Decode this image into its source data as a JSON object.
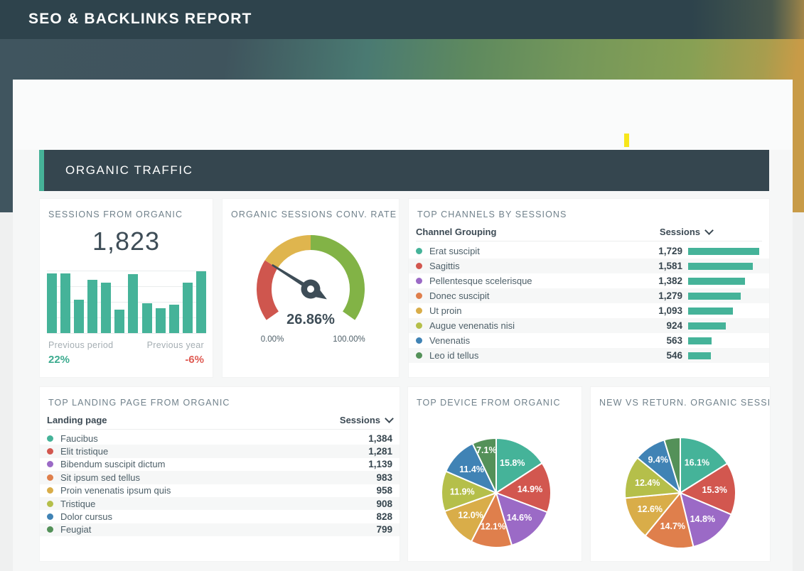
{
  "page_title": "SEO & BACKLINKS REPORT",
  "section_title": "ORGANIC TRAFFIC",
  "colors": {
    "accent_teal": "#46b298",
    "header_band": "#2e434c",
    "section_bar": "#35464f",
    "positive": "#3cab8f",
    "negative": "#df5a52",
    "highlight_marker": "#f7e61b",
    "series_palette": [
      "#45b399",
      "#d2574f",
      "#9b6ac6",
      "#df7f4c",
      "#d9ad49",
      "#b5bf4a",
      "#4083b5",
      "#549159"
    ]
  },
  "chart_data": [
    {
      "id": "sessions_sparkline",
      "type": "bar",
      "title": "SESSIONS FROM ORGANIC",
      "big_number": "1,823",
      "values_relative_percent": [
        95,
        96,
        53,
        85,
        81,
        38,
        94,
        48,
        40,
        45,
        81,
        99
      ],
      "bar_color": "#45b399",
      "grid": true,
      "footer": {
        "prev_period_label": "Previous period",
        "prev_period_value": "22%",
        "prev_year_label": "Previous year",
        "prev_year_value": "-6%"
      }
    },
    {
      "id": "conv_rate_gauge",
      "type": "gauge",
      "title": "ORGANIC SESSIONS CONV. RATE",
      "value": 26.86,
      "value_label": "26.86%",
      "min": 0,
      "max": 100,
      "min_label": "0.00%",
      "max_label": "100.00%",
      "sweep_deg": 250,
      "segments": [
        {
          "to": 26.86,
          "color": "#cf564e"
        },
        {
          "to": 50,
          "color": "#dfb54e"
        },
        {
          "to": 100,
          "color": "#82b346"
        }
      ],
      "needle_color": "#3e4d57"
    },
    {
      "id": "top_channels",
      "type": "table-bar",
      "title": "TOP CHANNELS BY SESSIONS",
      "col1": "Channel Grouping",
      "col2": "Sessions",
      "bar_color": "#45b399",
      "max": 1729,
      "rows": [
        {
          "label": "Erat suscipit",
          "value": "1,729",
          "num": 1729,
          "color": "#45b399"
        },
        {
          "label": "Sagittis",
          "value": "1,581",
          "num": 1581,
          "color": "#d2574f"
        },
        {
          "label": "Pellentesque scelerisque",
          "value": "1,382",
          "num": 1382,
          "color": "#9b6ac6"
        },
        {
          "label": "Donec suscipit",
          "value": "1,279",
          "num": 1279,
          "color": "#df7f4c"
        },
        {
          "label": "Ut proin",
          "value": "1,093",
          "num": 1093,
          "color": "#d9ad49"
        },
        {
          "label": "Augue venenatis nisi",
          "value": "924",
          "num": 924,
          "color": "#b5bf4a"
        },
        {
          "label": "Venenatis",
          "value": "563",
          "num": 563,
          "color": "#4083b5"
        },
        {
          "label": "Leo id tellus",
          "value": "546",
          "num": 546,
          "color": "#549159"
        }
      ]
    },
    {
      "id": "top_landing",
      "type": "table",
      "title": "TOP LANDING PAGE FROM ORGANIC",
      "col1": "Landing page",
      "col2": "Sessions",
      "rows": [
        {
          "label": "Faucibus",
          "value": "1,384",
          "color": "#45b399"
        },
        {
          "label": "Elit tristique",
          "value": "1,281",
          "color": "#d2574f"
        },
        {
          "label": "Bibendum suscipit dictum",
          "value": "1,139",
          "color": "#9b6ac6"
        },
        {
          "label": "Sit ipsum sed tellus",
          "value": "983",
          "color": "#df7f4c"
        },
        {
          "label": "Proin venenatis ipsum quis",
          "value": "958",
          "color": "#d9ad49"
        },
        {
          "label": "Tristique",
          "value": "908",
          "color": "#b5bf4a"
        },
        {
          "label": "Dolor cursus",
          "value": "828",
          "color": "#4083b5"
        },
        {
          "label": "Feugiat",
          "value": "799",
          "color": "#549159"
        }
      ]
    },
    {
      "id": "device_pie",
      "type": "pie",
      "title": "TOP DEVICE FROM ORGANIC",
      "values": [
        15.8,
        14.9,
        14.6,
        12.1,
        12.0,
        11.9,
        11.4,
        7.1
      ],
      "labels": [
        "15.8%",
        "14.9%",
        "14.6%",
        "12.1%",
        "12.0%",
        "11.9%",
        "11.4%",
        "7.1%"
      ],
      "colors": [
        "#45b399",
        "#d2574f",
        "#9b6ac6",
        "#df7f4c",
        "#d9ad49",
        "#b5bf4a",
        "#4083b5",
        "#549159"
      ],
      "start_angle_deg": 0,
      "direction": "clockwise"
    },
    {
      "id": "new_vs_return_pie",
      "type": "pie",
      "title": "NEW VS RETURN. ORGANIC SESSIONS",
      "values": [
        16.1,
        15.3,
        14.8,
        14.7,
        12.6,
        12.4,
        9.4,
        4.7
      ],
      "labels": [
        "16.1%",
        "15.3%",
        "14.8%",
        "14.7%",
        "12.6%",
        "12.4%",
        "9.4%",
        ""
      ],
      "colors": [
        "#45b399",
        "#d2574f",
        "#9b6ac6",
        "#df7f4c",
        "#d9ad49",
        "#b5bf4a",
        "#4083b5",
        "#549159"
      ],
      "start_angle_deg": 0,
      "direction": "clockwise"
    }
  ]
}
